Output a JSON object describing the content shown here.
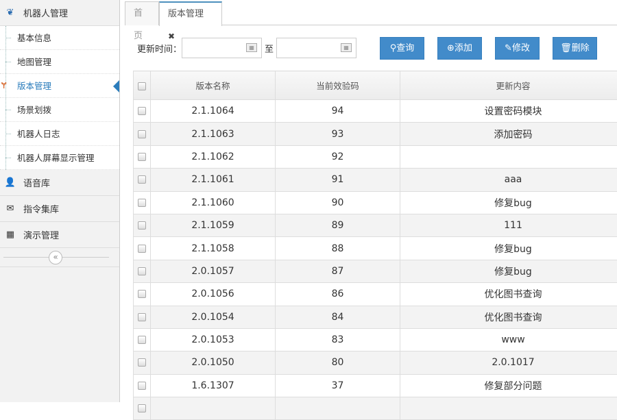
{
  "sidebar": {
    "group1": "机器人管理",
    "sub": [
      "基本信息",
      "地图管理",
      "版本管理",
      "场景划拨",
      "机器人日志",
      "机器人屏幕显示管理"
    ],
    "group2": "语音库",
    "group3": "指令集库",
    "group4": "演示管理",
    "collapse": "«"
  },
  "tabs": {
    "home": "首页",
    "current": "版本管理",
    "close": "✖"
  },
  "filter": {
    "label": "更新时间：",
    "to": "至",
    "start": "",
    "end": ""
  },
  "buttons": {
    "query": "查询",
    "add": "添加",
    "edit": "修改",
    "delete": "删除"
  },
  "table": {
    "headers": [
      "版本名称",
      "当前效验码",
      "更新内容"
    ],
    "rows": [
      [
        "2.1.1064",
        "94",
        "设置密码模块"
      ],
      [
        "2.1.1063",
        "93",
        "添加密码"
      ],
      [
        "2.1.1062",
        "92",
        ""
      ],
      [
        "2.1.1061",
        "91",
        "aaa"
      ],
      [
        "2.1.1060",
        "90",
        "修复bug"
      ],
      [
        "2.1.1059",
        "89",
        "111"
      ],
      [
        "2.1.1058",
        "88",
        "修复bug"
      ],
      [
        "2.0.1057",
        "87",
        "修复bug"
      ],
      [
        "2.0.1056",
        "86",
        "优化图书查询"
      ],
      [
        "2.0.1054",
        "84",
        "优化图书查询"
      ],
      [
        "2.0.1053",
        "83",
        "www"
      ],
      [
        "2.0.1050",
        "80",
        "2.0.1017"
      ],
      [
        "1.6.1307",
        "37",
        "修复部分问题"
      ],
      [
        "",
        "",
        ""
      ]
    ]
  },
  "colors": {
    "accent": "#428bca",
    "active": "#2b7dbc"
  }
}
